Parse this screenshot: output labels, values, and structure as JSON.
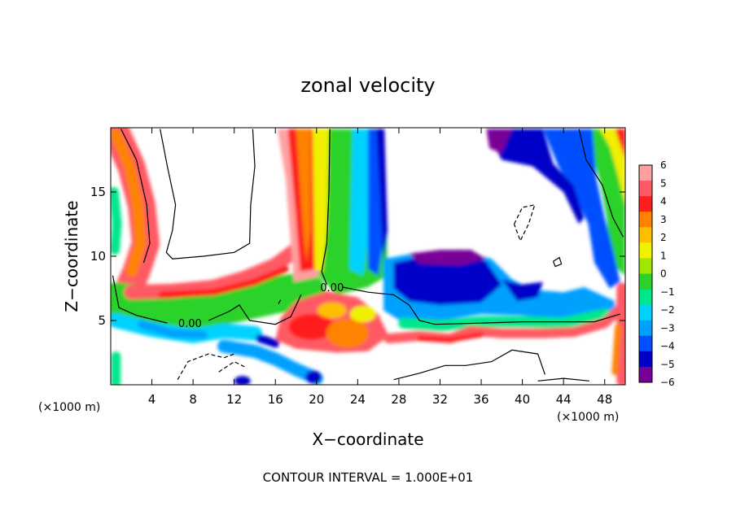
{
  "chart_data": {
    "type": "heatmap",
    "title": "zonal velocity",
    "xlabel": "X−coordinate",
    "ylabel": "Z−coordinate",
    "x_unit": "(×1000 m)",
    "y_unit": "(×1000 m)",
    "xlim": [
      0,
      50
    ],
    "ylim": [
      0,
      20
    ],
    "x_ticks": [
      4,
      8,
      12,
      16,
      20,
      24,
      28,
      32,
      36,
      40,
      44,
      48
    ],
    "y_ticks": [
      5,
      10,
      15
    ],
    "contour_labels": [
      {
        "text": "0.00",
        "x": 21.5,
        "y": 7.6
      },
      {
        "text": "0.00",
        "x": 7.7,
        "y": 4.8
      }
    ],
    "footer": "CONTOUR INTERVAL = 1.000E+01",
    "colorbar": {
      "min": -6,
      "max": 6,
      "tick_labels": [
        "6",
        "5",
        "4",
        "3",
        "2",
        "1",
        "0",
        "−1",
        "−2",
        "−3",
        "−4",
        "−5",
        "−6"
      ],
      "colors": [
        "#ffa0a0",
        "#ff5a64",
        "#ff1e1e",
        "#ff8200",
        "#ffbe00",
        "#f0f000",
        "#a0e600",
        "#2ad22a",
        "#00e68c",
        "#00d2ff",
        "#00a0ff",
        "#0050ff",
        "#0000c8",
        "#780096"
      ]
    }
  }
}
